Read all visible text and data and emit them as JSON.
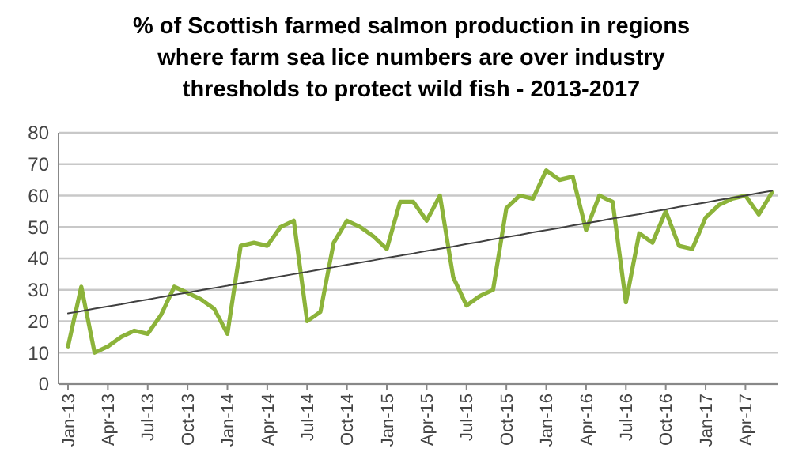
{
  "chart_data": {
    "type": "line",
    "title": "% of Scottish farmed salmon production in regions where farm sea lice numbers are over industry thresholds to protect wild fish - 2013-2017",
    "categories": [
      "Jan-13",
      null,
      null,
      "Apr-13",
      null,
      null,
      "Jul-13",
      null,
      null,
      "Oct-13",
      null,
      null,
      "Jan-14",
      null,
      null,
      "Apr-14",
      null,
      null,
      "Jul-14",
      null,
      null,
      "Oct-14",
      null,
      null,
      "Jan-15",
      null,
      null,
      "Apr-15",
      null,
      null,
      "Jul-15",
      null,
      null,
      "Oct-15",
      null,
      null,
      "Jan-16",
      null,
      null,
      "Apr-16",
      null,
      null,
      "Jul-16",
      null,
      null,
      "Oct-16",
      null,
      null,
      "Jan-17",
      null,
      null,
      "Apr-17",
      null,
      null
    ],
    "series": [
      {
        "color": "#8cb33a",
        "values": [
          12,
          31,
          10,
          12,
          15,
          17,
          16,
          22,
          31,
          29,
          27,
          24,
          16,
          44,
          45,
          44,
          50,
          52,
          20,
          23,
          45,
          52,
          50,
          47,
          43,
          58,
          58,
          52,
          60,
          34,
          25,
          28,
          30,
          56,
          60,
          59,
          68,
          65,
          66,
          49,
          60,
          58,
          26,
          48,
          45,
          55,
          44,
          43,
          53,
          57,
          59,
          60,
          54,
          61
        ]
      },
      {
        "color": "#404040",
        "values": [
          22.5,
          23.2,
          24.0,
          24.7,
          25.4,
          26.2,
          26.9,
          27.7,
          28.4,
          29.1,
          29.9,
          30.6,
          31.3,
          32.1,
          32.8,
          33.5,
          34.3,
          35.0,
          35.7,
          36.5,
          37.2,
          38.0,
          38.7,
          39.4,
          40.2,
          40.9,
          41.6,
          42.4,
          43.1,
          43.8,
          44.6,
          45.3,
          46.1,
          46.8,
          47.5,
          48.3,
          49.0,
          49.7,
          50.5,
          51.2,
          51.9,
          52.7,
          53.4,
          54.1,
          54.9,
          55.6,
          56.4,
          57.1,
          57.8,
          58.6,
          59.3,
          60.0,
          60.8,
          61.5
        ]
      }
    ],
    "ylim": [
      0,
      80
    ],
    "yticks": [
      0,
      10,
      20,
      30,
      40,
      50,
      60,
      70,
      80
    ],
    "grid": "y",
    "marker": "none",
    "line_style": "solid"
  }
}
